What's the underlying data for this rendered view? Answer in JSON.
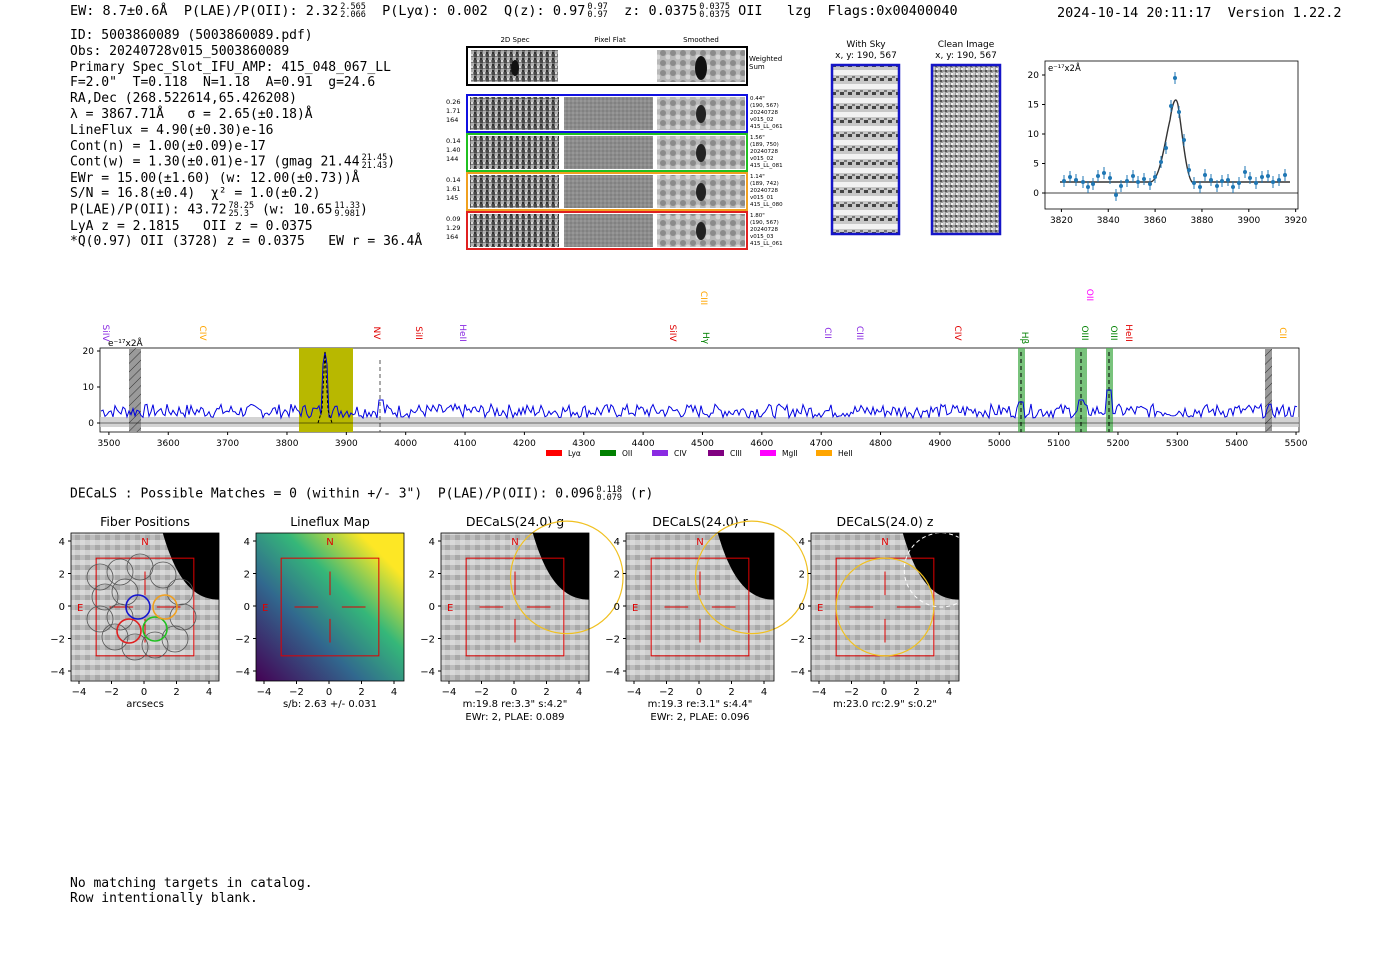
{
  "header": {
    "ew": "EW: 8.7±0.6Å",
    "plae_label": "P(LAE)/P(OII): 2.32",
    "plae_hi": "2.565",
    "plae_lo": "2.066",
    "plya": "P(Lyα): 0.002",
    "qz_label": "Q(z): 0.97",
    "qz_hi": "0.97",
    "qz_lo": "0.97",
    "z_label": "z: 0.0375",
    "z_hi": "0.0375",
    "z_lo": "0.0375",
    "z_line": "OII",
    "lzg": "lzg",
    "flags": "Flags:0x00400040",
    "timestamp": "2024-10-14 20:11:17",
    "version": "Version 1.22.2"
  },
  "info": {
    "id": "ID: 5003860089 (5003860089.pdf)",
    "obs": "Obs: 20240728v015_5003860089",
    "primary": "Primary Spec_Slot_IFU_AMP: 415_048_067_LL",
    "fwhm": "F=2.0\"  T=0.118  N=1.18  A=0.91  g=24.6",
    "radec": "RA,Dec (268.522614,65.426208)",
    "lambda": "λ = 3867.71Å   σ = 2.65(±0.18)Å",
    "lineflux": "LineFlux = 4.90(±0.30)e-16",
    "contn": "Cont(n) = 1.00(±0.09)e-17",
    "contw": "Cont(w) = 1.30(±0.01)e-17 (gmag 21.44",
    "gmag_hi": "21.45",
    "gmag_lo": "21.43",
    "contw_end": ")",
    "ewr": "EWr = 15.00(±1.60) (w: 12.00(±0.73))Å",
    "sn": "S/N = 16.8(±0.4)  χ² = 1.0(±0.2)",
    "plae": "P(LAE)/P(OII): 43.72",
    "plae_hi": "78.25",
    "plae_lo": "25.3",
    "plae_w": "(w: 10.65",
    "plae_w_hi": "11.33",
    "plae_w_lo": "9.981",
    "plae_w_end": ")",
    "lya": "LyA z = 2.1815   OII z = 0.0375",
    "q": "*Q(0.97) OII (3728) z = 0.0375   EW r = 36.4Å"
  },
  "cutouts": {
    "col_2d": "2D Spec",
    "col_flat": "Pixel Flat",
    "col_smooth": "Smoothed",
    "weighted": "Weighted",
    "sum": "Sum",
    "rows": [
      {
        "vals": [
          "0.26",
          "1.71",
          "164"
        ],
        "color": "#1010e0",
        "meta": [
          "0.44\"",
          "(190, 567)",
          "20240728",
          "v015_02",
          "415_LL_061"
        ]
      },
      {
        "vals": [
          "0.14",
          "1.40",
          "144"
        ],
        "color": "#20c020",
        "meta": [
          "1.56\"",
          "(189, 750)",
          "20240728",
          "v015_02",
          "415_LL_081"
        ]
      },
      {
        "vals": [
          "0.14",
          "1.61",
          "145"
        ],
        "color": "#f0a020",
        "meta": [
          "1.14\"",
          "(189, 742)",
          "20240728",
          "v015_01",
          "415_LL_080"
        ]
      },
      {
        "vals": [
          "0.09",
          "1.29",
          "164"
        ],
        "color": "#e02020",
        "meta": [
          "1.80\"",
          "(190, 567)",
          "20240728",
          "v015_03",
          "415_LL_061"
        ]
      }
    ]
  },
  "sky": {
    "with_sky_title": "With Sky",
    "with_sky_xy": "x, y: 190, 567",
    "clean_title": "Clean Image",
    "clean_xy": "x, y: 190, 567"
  },
  "zoom_plot": {
    "units": "e⁻¹⁷x2Å",
    "xticks": [
      "3820",
      "3840",
      "3860",
      "3880",
      "3900",
      "3920"
    ],
    "yticks": [
      "0",
      "5",
      "10",
      "15",
      "20"
    ]
  },
  "spectrum": {
    "units": "e⁻¹⁷x2Å",
    "yticks": [
      "0",
      "10",
      "20"
    ],
    "xticks": [
      "3500",
      "3600",
      "3700",
      "3800",
      "3900",
      "4000",
      "4100",
      "4200",
      "4300",
      "4400",
      "4500",
      "4600",
      "4700",
      "4800",
      "4900",
      "5000",
      "5100",
      "5200",
      "5300",
      "5400",
      "5500"
    ],
    "line_labels": [
      {
        "text": "SiIV",
        "color": "#8a2be2"
      },
      {
        "text": "CIV",
        "color": "#ffa500"
      },
      {
        "text": "NV",
        "color": "#e00000"
      },
      {
        "text": "SiII",
        "color": "#e00000"
      },
      {
        "text": "HeII",
        "color": "#8a2be2"
      },
      {
        "text": "SiIV",
        "color": "#e00000"
      },
      {
        "text": "CIII",
        "color": "#ffa500"
      },
      {
        "text": "Hγ",
        "color": "#008000"
      },
      {
        "text": "CII",
        "color": "#8a2be2"
      },
      {
        "text": "CIII",
        "color": "#8a2be2"
      },
      {
        "text": "CIV",
        "color": "#e00000"
      },
      {
        "text": "Hβ",
        "color": "#008000"
      },
      {
        "text": "OII",
        "color": "#ff00ff"
      },
      {
        "text": "OIII",
        "color": "#008000"
      },
      {
        "text": "OIII",
        "color": "#008000"
      },
      {
        "text": "HeII",
        "color": "#e00000"
      },
      {
        "text": "CII",
        "color": "#ffa500"
      }
    ],
    "legend": [
      {
        "text": "Lyα",
        "color": "#ff0000"
      },
      {
        "text": "OII",
        "color": "#008000"
      },
      {
        "text": "CIV",
        "color": "#8a2be2"
      },
      {
        "text": "CIII",
        "color": "#800080"
      },
      {
        "text": "MgII",
        "color": "#ff00ff"
      },
      {
        "text": "HeII",
        "color": "#ffa500"
      }
    ]
  },
  "decals": {
    "line": "DECaLS : Possible Matches = 0 (within +/- 3\")  P(LAE)/P(OII): 0.096",
    "hi": "0.118",
    "lo": "0.079",
    "band": "(r)",
    "panels": [
      {
        "title": "Fiber Positions",
        "cap1": "arcsecs",
        "cap2": ""
      },
      {
        "title": "Lineflux Map",
        "cap1": "s/b: 2.63 +/- 0.031",
        "cap2": ""
      },
      {
        "title": "DECaLS(24.0) g",
        "cap1": "m:19.8  re:3.3\"  s:4.2\"",
        "cap2": "EWr: 2, PLAE: 0.089"
      },
      {
        "title": "DECaLS(24.0) r",
        "cap1": "m:19.3  re:3.1\"  s:4.4\"",
        "cap2": "EWr: 2, PLAE: 0.096"
      },
      {
        "title": "DECaLS(24.0) z",
        "cap1": "m:23.0 rc:2.9\"  s:0.2\"",
        "cap2": ""
      }
    ],
    "ticks": [
      "4",
      "2",
      "0",
      "−2",
      "−4"
    ],
    "xticks": [
      "−4",
      "−2",
      "0",
      "2",
      "4"
    ],
    "north": "N",
    "east": "E"
  },
  "footer": {
    "line1": "No matching targets in catalog.",
    "line2": "Row intentionally blank."
  }
}
